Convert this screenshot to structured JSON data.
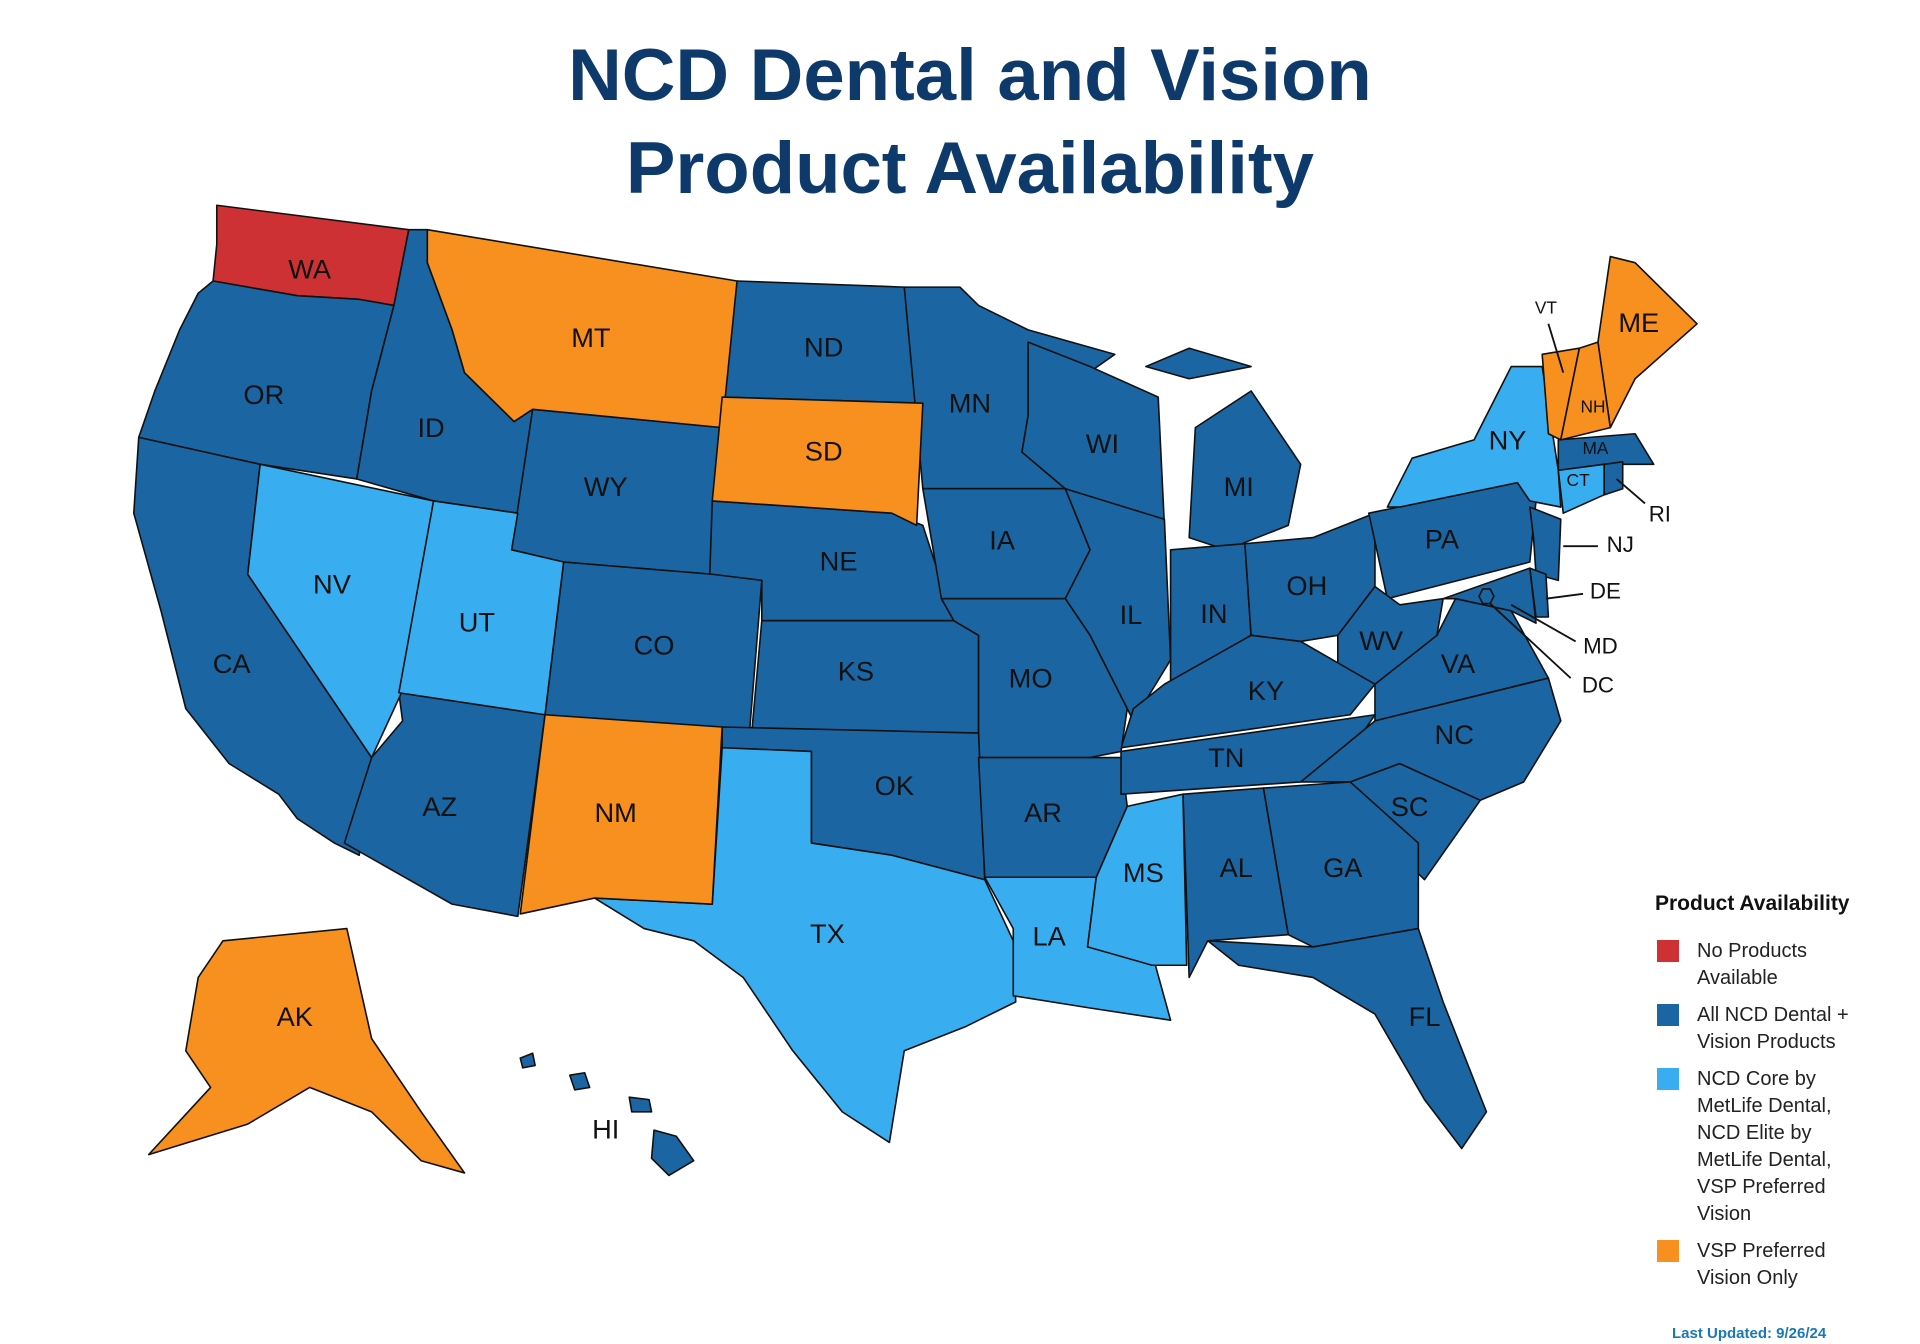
{
  "title": [
    "NCD Dental and Vision",
    "Product Availability"
  ],
  "legend_title": "Product Availability",
  "categories": [
    {
      "label": "No Products Available",
      "color": "#cd3134",
      "states": [
        "WA"
      ]
    },
    {
      "label": "All NCD Dental + Vision Products",
      "color": "#1b65a3",
      "states": [
        "OR",
        "ID",
        "WY",
        "ND",
        "MN",
        "WI",
        "MI",
        "CA",
        "NE",
        "IA",
        "IL",
        "IN",
        "OH",
        "PA",
        "NJ",
        "DE",
        "MD",
        "DC",
        "WV",
        "VA",
        "KY",
        "CO",
        "KS",
        "MO",
        "AZ",
        "OK",
        "AR",
        "TN",
        "NC",
        "SC",
        "AL",
        "GA",
        "FL",
        "HI",
        "MA",
        "RI"
      ]
    },
    {
      "label": "NCD Core by MetLife Dental, NCD Elite by MetLife Dental, VSP Preferred Vision",
      "color": "#38aef0",
      "states": [
        "NV",
        "UT",
        "TX",
        "LA",
        "MS",
        "NY",
        "CT"
      ]
    },
    {
      "label": "VSP Preferred Vision Only",
      "color": "#f7901e",
      "states": [
        "MT",
        "SD",
        "NM",
        "AK",
        "ME",
        "VT",
        "NH"
      ]
    }
  ],
  "last_updated": "Last Updated: 9/26/24"
}
